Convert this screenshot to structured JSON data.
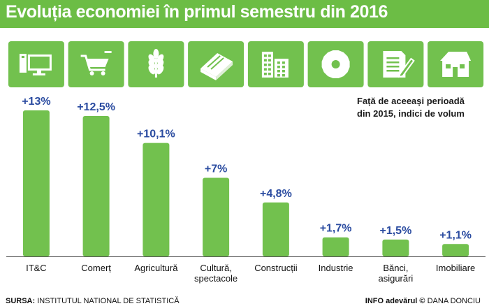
{
  "header": {
    "title": "Evoluția economiei în primul semestru din 2016"
  },
  "note": {
    "lines": [
      "Față de aceeași perioadă",
      "din 2015, indici de volum"
    ]
  },
  "footer": {
    "source_label": "SURSA:",
    "source_text": "INSTITUTUL NATIONAL DE STATISTICĂ",
    "info_label": "INFO",
    "info_brand": "adevărul ©",
    "info_author": "DANA DONCIU"
  },
  "colors": {
    "accent": "#72c14e",
    "header": "#6cbd45",
    "value_text": "#2a4ba0"
  },
  "chart_data": {
    "type": "bar",
    "title": "Evoluția economiei în primul semestru din 2016",
    "categories": [
      "IT&C",
      "Comerț",
      "Agricultură",
      "Cultură, spectacole",
      "Construcții",
      "Industrie",
      "Bănci, asigurări",
      "Imobiliare"
    ],
    "category_lines": [
      [
        "IT&C"
      ],
      [
        "Comerț"
      ],
      [
        "Agricultură"
      ],
      [
        "Cultură,",
        "spectacole"
      ],
      [
        "Construcții"
      ],
      [
        "Industrie"
      ],
      [
        "Bănci,",
        "asigurări"
      ],
      [
        "Imobiliare"
      ]
    ],
    "values": [
      13,
      12.5,
      10.1,
      7,
      4.8,
      1.7,
      1.5,
      1.1
    ],
    "value_labels": [
      "+13%",
      "+12,5%",
      "+10,1%",
      "+7%",
      "+4,8%",
      "+1,7%",
      "+1,5%",
      "+1,1%"
    ],
    "icons": [
      "computer-icon",
      "shopping-cart-icon",
      "wheat-icon",
      "book-icon",
      "buildings-icon",
      "gear-icon",
      "document-pen-icon",
      "house-icon"
    ],
    "ylim": [
      0,
      13
    ],
    "grid": false,
    "unit": "%"
  }
}
